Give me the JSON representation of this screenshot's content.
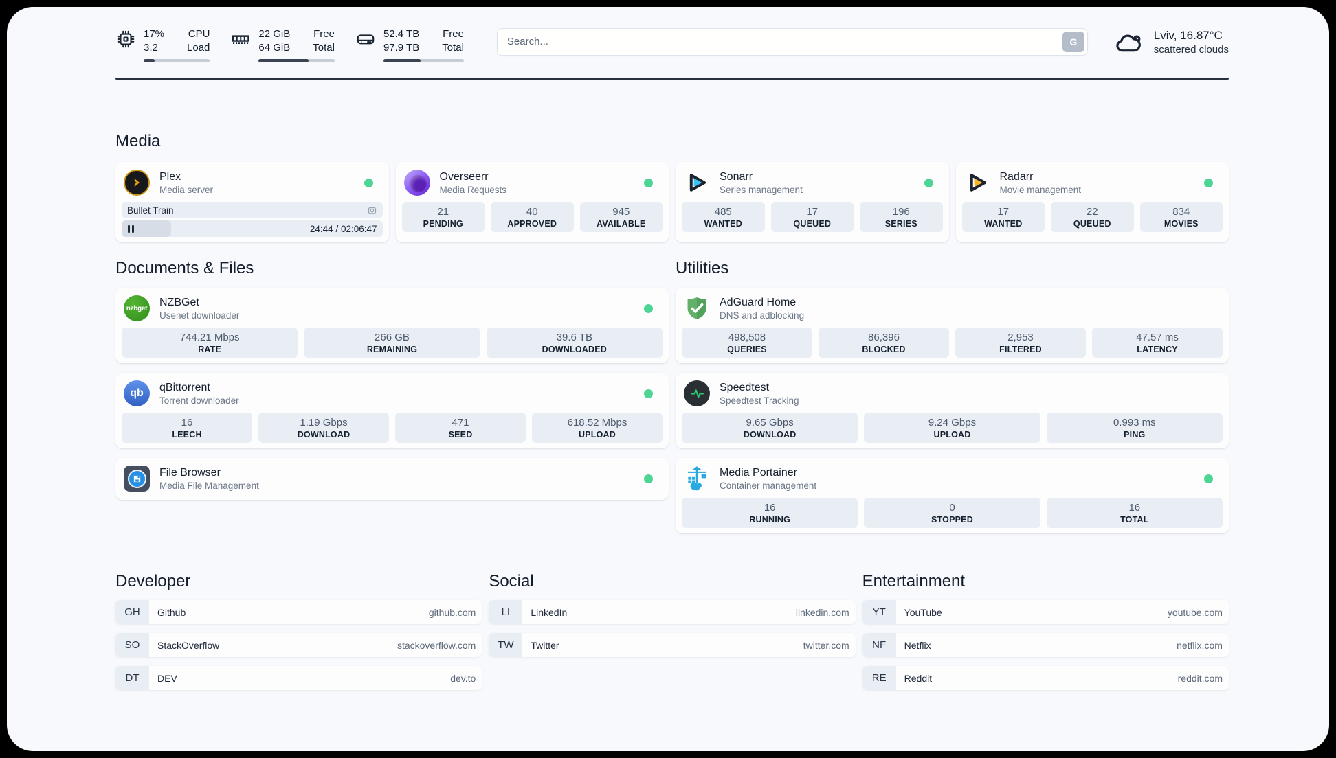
{
  "topbar": {
    "cpu": {
      "value1": "17%",
      "value2": "3.2",
      "label1": "CPU",
      "label2": "Load",
      "progress": 17
    },
    "memory": {
      "value1": "22 GiB",
      "value2": "64 GiB",
      "label1": "Free",
      "label2": "Total",
      "progress": 66
    },
    "storage": {
      "value1": "52.4 TB",
      "value2": "97.9 TB",
      "label1": "Free",
      "label2": "Total",
      "progress": 46
    },
    "search": {
      "placeholder": "Search...",
      "button_label": "G"
    },
    "weather": {
      "line1": "Lviv, 16.87°C",
      "line2": "scattered clouds"
    }
  },
  "sections": {
    "media": {
      "title": "Media",
      "plex": {
        "name": "Plex",
        "description": "Media server",
        "online": true,
        "now_playing": "Bullet Train",
        "time": "24:44 / 02:06:47",
        "progress": 19
      },
      "overseerr": {
        "name": "Overseerr",
        "description": "Media Requests",
        "online": true,
        "stats": [
          {
            "value": "21",
            "label": "PENDING"
          },
          {
            "value": "40",
            "label": "APPROVED"
          },
          {
            "value": "945",
            "label": "AVAILABLE"
          }
        ]
      },
      "sonarr": {
        "name": "Sonarr",
        "description": "Series management",
        "online": true,
        "stats": [
          {
            "value": "485",
            "label": "WANTED"
          },
          {
            "value": "17",
            "label": "QUEUED"
          },
          {
            "value": "196",
            "label": "SERIES"
          }
        ]
      },
      "radarr": {
        "name": "Radarr",
        "description": "Movie management",
        "online": true,
        "stats": [
          {
            "value": "17",
            "label": "WANTED"
          },
          {
            "value": "22",
            "label": "QUEUED"
          },
          {
            "value": "834",
            "label": "MOVIES"
          }
        ]
      }
    },
    "documents": {
      "title": "Documents & Files",
      "nzbget": {
        "name": "NZBGet",
        "description": "Usenet downloader",
        "online": true,
        "stats": [
          {
            "value": "744.21 Mbps",
            "label": "RATE"
          },
          {
            "value": "266 GB",
            "label": "REMAINING"
          },
          {
            "value": "39.6 TB",
            "label": "DOWNLOADED"
          }
        ]
      },
      "qbittorrent": {
        "name": "qBittorrent",
        "description": "Torrent downloader",
        "online": true,
        "stats": [
          {
            "value": "16",
            "label": "LEECH"
          },
          {
            "value": "1.19 Gbps",
            "label": "DOWNLOAD"
          },
          {
            "value": "471",
            "label": "SEED"
          },
          {
            "value": "618.52 Mbps",
            "label": "UPLOAD"
          }
        ]
      },
      "filebrowser": {
        "name": "File Browser",
        "description": "Media File Management",
        "online": true
      }
    },
    "utilities": {
      "title": "Utilities",
      "adguard": {
        "name": "AdGuard Home",
        "description": "DNS and adblocking",
        "online": false,
        "stats": [
          {
            "value": "498,508",
            "label": "QUERIES"
          },
          {
            "value": "86,396",
            "label": "BLOCKED"
          },
          {
            "value": "2,953",
            "label": "FILTERED"
          },
          {
            "value": "47.57 ms",
            "label": "LATENCY"
          }
        ]
      },
      "speedtest": {
        "name": "Speedtest",
        "description": "Speedtest Tracking",
        "online": false,
        "stats": [
          {
            "value": "9.65 Gbps",
            "label": "DOWNLOAD"
          },
          {
            "value": "9.24 Gbps",
            "label": "UPLOAD"
          },
          {
            "value": "0.993 ms",
            "label": "PING"
          }
        ]
      },
      "portainer": {
        "name": "Media Portainer",
        "description": "Container management",
        "online": true,
        "stats": [
          {
            "value": "16",
            "label": "RUNNING"
          },
          {
            "value": "0",
            "label": "STOPPED"
          },
          {
            "value": "16",
            "label": "TOTAL"
          }
        ]
      }
    },
    "links": {
      "developer": {
        "title": "Developer",
        "items": [
          {
            "badge": "GH",
            "name": "Github",
            "url": "github.com"
          },
          {
            "badge": "SO",
            "name": "StackOverflow",
            "url": "stackoverflow.com"
          },
          {
            "badge": "DT",
            "name": "DEV",
            "url": "dev.to"
          }
        ]
      },
      "social": {
        "title": "Social",
        "items": [
          {
            "badge": "LI",
            "name": "LinkedIn",
            "url": "linkedin.com"
          },
          {
            "badge": "TW",
            "name": "Twitter",
            "url": "twitter.com"
          }
        ]
      },
      "entertainment": {
        "title": "Entertainment",
        "items": [
          {
            "badge": "YT",
            "name": "YouTube",
            "url": "youtube.com"
          },
          {
            "badge": "NF",
            "name": "Netflix",
            "url": "netflix.com"
          },
          {
            "badge": "RE",
            "name": "Reddit",
            "url": "reddit.com"
          }
        ]
      }
    }
  },
  "colors": {
    "status_online": "#4ed494",
    "plex_accent": "#e5a00d",
    "sonarr_accent": "#35c5f4",
    "radarr_accent": "#f9b52a",
    "adguard_accent": "#62b069",
    "speedtest_accent": "#2ecc71",
    "portainer_accent": "#29a9e1",
    "panel_background": "#f7f9fc",
    "stat_background": "#e9eef5"
  }
}
